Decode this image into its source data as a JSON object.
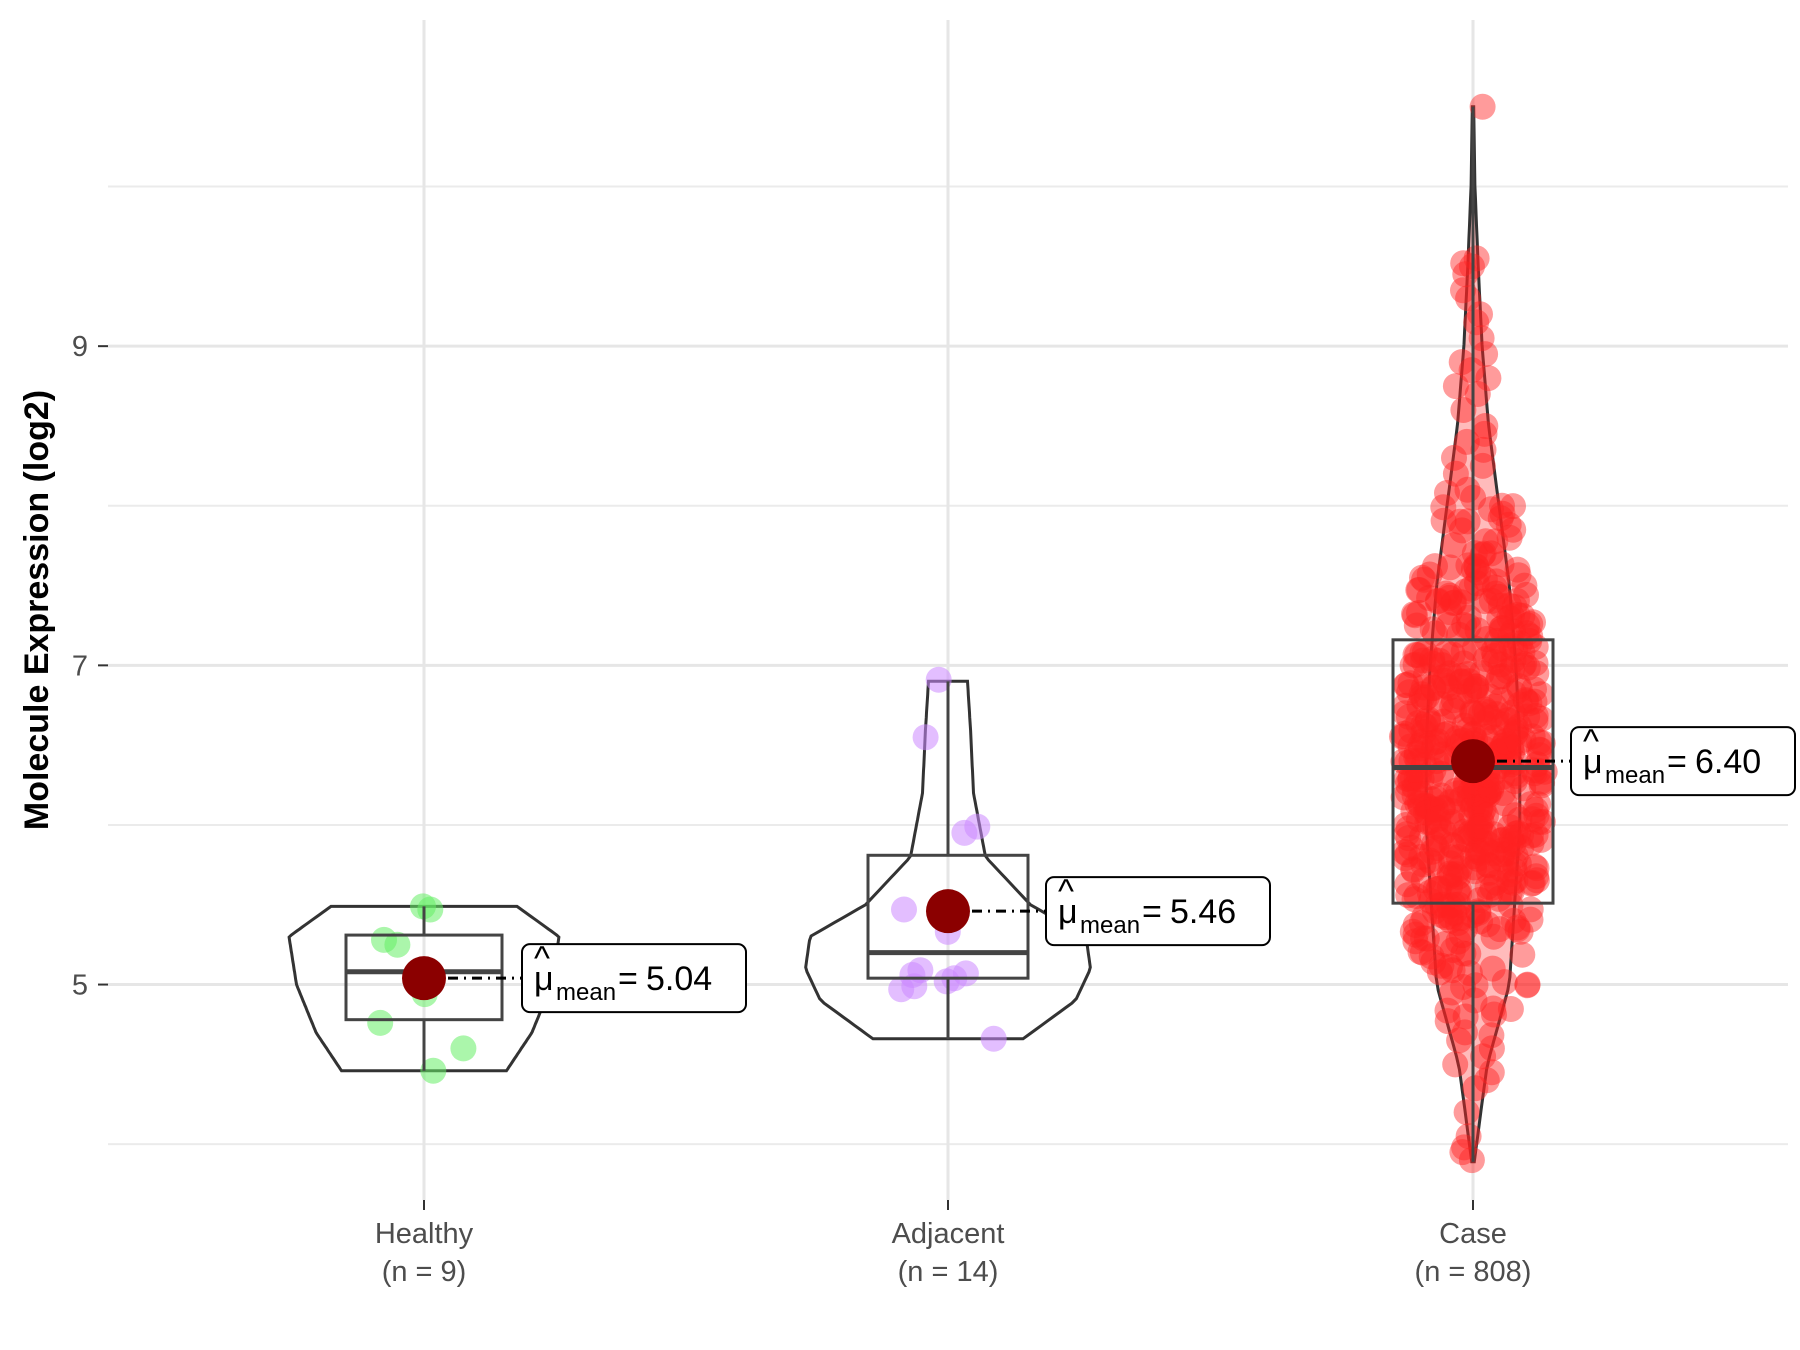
{
  "chart_data": {
    "type": "violin-box-jitter",
    "title": "",
    "xlabel": "",
    "ylabel": "Molecule Expression (log2)",
    "ylim": [
      3.6,
      10.8
    ],
    "y_ticks": [
      5,
      7,
      9
    ],
    "y_tick_labels": [
      "5",
      "7",
      "9"
    ],
    "grid": true,
    "mean_label_prefix": "μ̂",
    "mean_label_subscript": "mean",
    "mean_label_equals": "=",
    "groups": [
      {
        "name": "Healthy",
        "n_label": "(n = 9)",
        "color": "#66ee66",
        "mean": 5.04,
        "mean_label": "5.04",
        "box": {
          "q1": 4.78,
          "median": 5.08,
          "q3": 5.31,
          "whisker_low": 4.46,
          "whisker_high": 5.49
        },
        "violin": {
          "y_min": 4.46,
          "y_max": 5.49,
          "profile": [
            [
              4.46,
              0.55
            ],
            [
              4.7,
              0.72
            ],
            [
              5.0,
              0.85
            ],
            [
              5.3,
              0.9
            ],
            [
              5.49,
              0.62
            ]
          ]
        },
        "points": [
          5.49,
          5.47,
          5.28,
          5.25,
          5.07,
          4.94,
          4.76,
          4.6,
          4.46
        ]
      },
      {
        "name": "Adjacent",
        "n_label": "(n = 14)",
        "color": "#cc88ff",
        "mean": 5.46,
        "mean_label": "5.46",
        "box": {
          "q1": 5.04,
          "median": 5.2,
          "q3": 5.81,
          "whisker_low": 4.66,
          "whisker_high": 6.9
        },
        "violin": {
          "y_min": 4.66,
          "y_max": 6.9,
          "profile": [
            [
              4.66,
              0.5
            ],
            [
              4.9,
              0.85
            ],
            [
              5.1,
              0.95
            ],
            [
              5.3,
              0.92
            ],
            [
              5.5,
              0.55
            ],
            [
              5.8,
              0.25
            ],
            [
              6.2,
              0.17
            ],
            [
              6.6,
              0.15
            ],
            [
              6.9,
              0.13
            ]
          ]
        },
        "points": [
          6.91,
          6.55,
          5.99,
          5.95,
          5.47,
          5.33,
          5.09,
          5.07,
          5.06,
          5.04,
          5.02,
          4.99,
          4.97,
          4.66
        ]
      },
      {
        "name": "Case",
        "n_label": "(n = 808)",
        "color": "#ff2222",
        "mean": 6.4,
        "mean_label": "6.40",
        "box": {
          "q1": 5.51,
          "median": 6.36,
          "q3": 7.16,
          "whisker_low": 3.89,
          "whisker_high": 10.5
        },
        "violin": {
          "y_min": 3.89,
          "y_max": 10.5,
          "profile": [
            [
              3.89,
              0.01
            ],
            [
              4.2,
              0.06
            ],
            [
              4.5,
              0.11
            ],
            [
              5.0,
              0.28
            ],
            [
              5.5,
              0.32
            ],
            [
              6.0,
              0.36
            ],
            [
              6.5,
              0.36
            ],
            [
              7.0,
              0.33
            ],
            [
              7.5,
              0.28
            ],
            [
              8.0,
              0.2
            ],
            [
              8.5,
              0.12
            ],
            [
              9.0,
              0.07
            ],
            [
              9.5,
              0.04
            ],
            [
              10.0,
              0.015
            ],
            [
              10.5,
              0.005
            ]
          ]
        },
        "points_note": "808 jittered points; representative positions listed",
        "points": [
          10.5,
          9.55,
          9.52,
          9.5,
          9.45,
          9.35,
          9.3,
          9.2,
          9.15,
          9.05,
          8.95,
          8.9,
          8.85,
          8.8,
          8.75,
          8.7,
          8.6,
          8.5,
          8.45,
          8.4,
          8.35,
          8.3,
          8.25,
          8.2,
          8.1,
          8.05,
          8.0,
          7.95,
          7.9,
          7.85,
          7.8,
          7.7,
          7.6,
          7.5,
          7.45,
          7.4,
          7.3,
          7.25,
          7.2,
          7.1,
          7.0,
          6.95,
          6.9,
          6.8,
          6.7,
          6.6,
          6.5,
          6.45,
          6.4,
          6.3,
          6.2,
          6.1,
          6.0,
          5.9,
          5.8,
          5.75,
          5.7,
          5.6,
          5.5,
          5.4,
          5.35,
          5.3,
          5.2,
          5.1,
          5.0,
          4.95,
          4.9,
          4.85,
          4.8,
          4.7,
          4.65,
          4.6,
          4.55,
          4.5,
          4.45,
          4.4,
          4.35,
          4.2,
          4.05,
          3.98,
          3.95,
          3.9
        ]
      }
    ]
  }
}
